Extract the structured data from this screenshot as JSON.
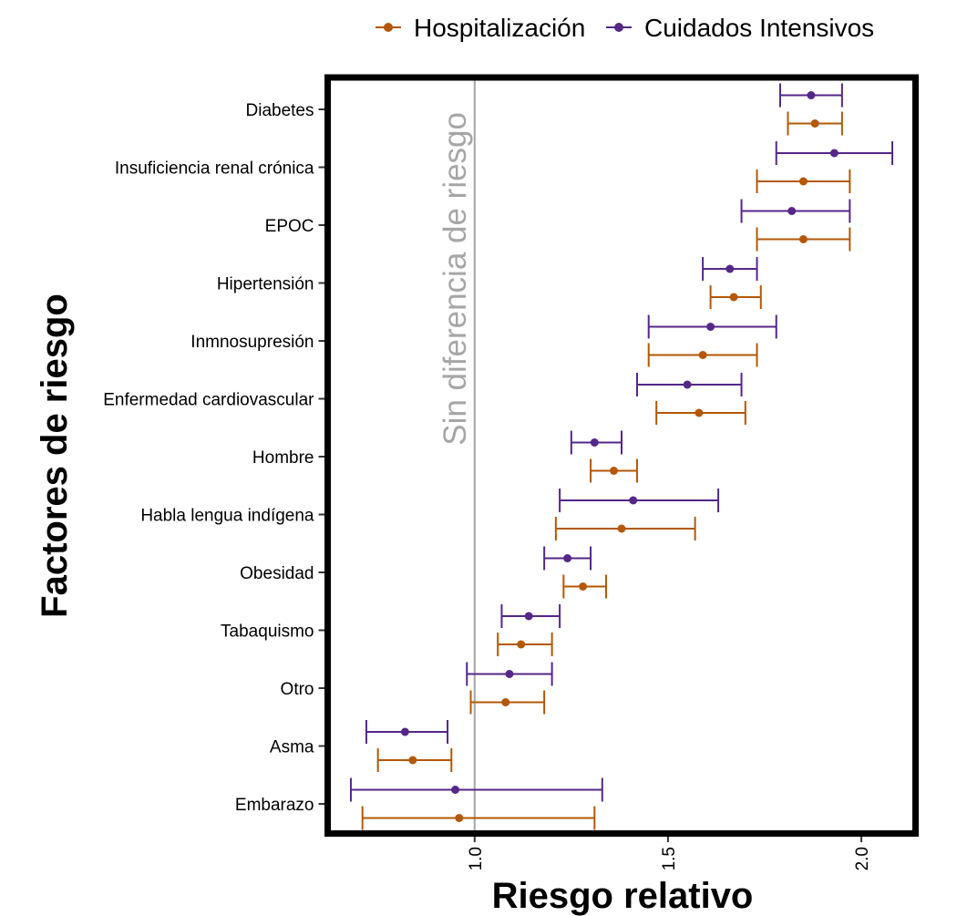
{
  "chart_data": {
    "type": "forest",
    "title": "",
    "xlabel": "Riesgo relativo",
    "ylabel": "Factores de riesgo",
    "xlim": [
      0.62,
      2.14
    ],
    "x_ticks": [
      "1.0",
      "1.5",
      "2.0"
    ],
    "x_tick_values": [
      1.0,
      1.5,
      2.0
    ],
    "reference_line": {
      "x": 1.0,
      "label": "Sin diferencia de riesgo",
      "color": "#a6a6a6"
    },
    "legend_position": "top",
    "grid": false,
    "categories": [
      "Diabetes",
      "Insuficiencia renal crónica",
      "EPOC",
      "Hipertensión",
      "Inmnosupresión",
      "Enfermedad cardiovascular",
      "Hombre",
      "Habla lengua indígena",
      "Obesidad",
      "Tabaquismo",
      "Otro",
      "Asma",
      "Embarazo"
    ],
    "series": [
      {
        "name": "Hospitalización",
        "color": "#b35806",
        "points": [
          {
            "estimate": 1.88,
            "low": 1.81,
            "high": 1.95
          },
          {
            "estimate": 1.85,
            "low": 1.73,
            "high": 1.97
          },
          {
            "estimate": 1.85,
            "low": 1.73,
            "high": 1.97
          },
          {
            "estimate": 1.67,
            "low": 1.61,
            "high": 1.74
          },
          {
            "estimate": 1.59,
            "low": 1.45,
            "high": 1.73
          },
          {
            "estimate": 1.58,
            "low": 1.47,
            "high": 1.7
          },
          {
            "estimate": 1.36,
            "low": 1.3,
            "high": 1.42
          },
          {
            "estimate": 1.38,
            "low": 1.21,
            "high": 1.57
          },
          {
            "estimate": 1.28,
            "low": 1.23,
            "high": 1.34
          },
          {
            "estimate": 1.12,
            "low": 1.06,
            "high": 1.2
          },
          {
            "estimate": 1.08,
            "low": 0.99,
            "high": 1.18
          },
          {
            "estimate": 0.84,
            "low": 0.75,
            "high": 0.94
          },
          {
            "estimate": 0.96,
            "low": 0.71,
            "high": 1.31
          }
        ]
      },
      {
        "name": "Cuidados Intensivos",
        "color": "#542788",
        "points": [
          {
            "estimate": 1.87,
            "low": 1.79,
            "high": 1.95
          },
          {
            "estimate": 1.93,
            "low": 1.78,
            "high": 2.08
          },
          {
            "estimate": 1.82,
            "low": 1.69,
            "high": 1.97
          },
          {
            "estimate": 1.66,
            "low": 1.59,
            "high": 1.73
          },
          {
            "estimate": 1.61,
            "low": 1.45,
            "high": 1.78
          },
          {
            "estimate": 1.55,
            "low": 1.42,
            "high": 1.69
          },
          {
            "estimate": 1.31,
            "low": 1.25,
            "high": 1.38
          },
          {
            "estimate": 1.41,
            "low": 1.22,
            "high": 1.63
          },
          {
            "estimate": 1.24,
            "low": 1.18,
            "high": 1.3
          },
          {
            "estimate": 1.14,
            "low": 1.07,
            "high": 1.22
          },
          {
            "estimate": 1.09,
            "low": 0.98,
            "high": 1.2
          },
          {
            "estimate": 0.82,
            "low": 0.72,
            "high": 0.93
          },
          {
            "estimate": 0.95,
            "low": 0.68,
            "high": 1.33
          }
        ]
      }
    ]
  }
}
